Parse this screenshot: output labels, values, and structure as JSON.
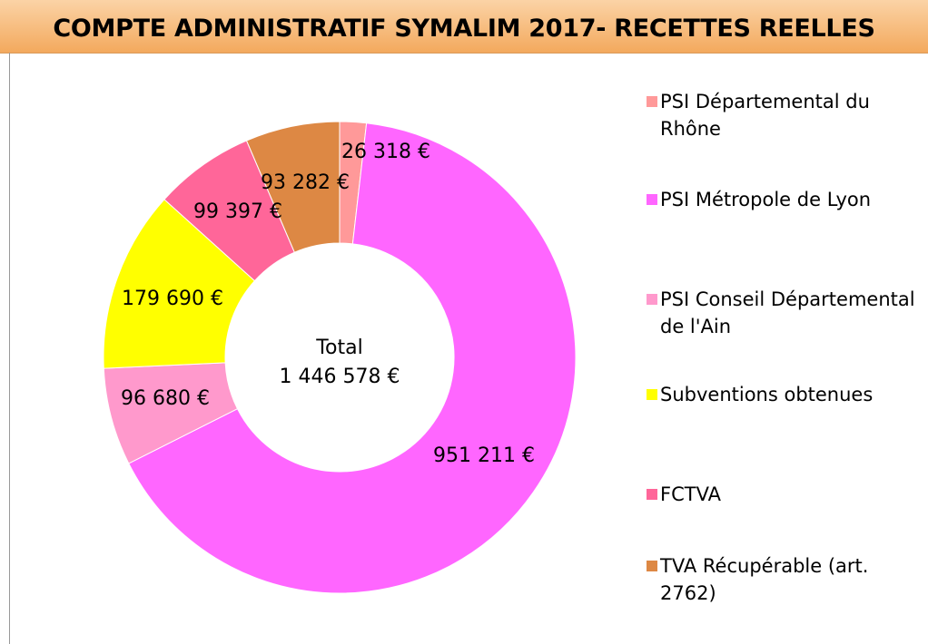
{
  "chart_data": {
    "type": "donut",
    "title": "COMPTE ADMINISTRATIF SYMALIM 2017- RECETTES REELLES",
    "categories": [
      "PSI Départemental  du Rhône",
      "PSI Métropole de Lyon",
      "PSI Conseil Départemental de l'Ain",
      "Subventions obtenues",
      "FCTVA",
      "TVA Récupérable (art. 2762)"
    ],
    "values": [
      26318,
      951211,
      96680,
      179690,
      99397,
      93282
    ],
    "value_labels": [
      "26 318 €",
      "951 211 €",
      "96 680 €",
      "179 690 €",
      "99 397 €",
      "93 282 €"
    ],
    "colors": [
      "#ff9999",
      "#ff66ff",
      "#ff99cc",
      "#ffff00",
      "#ff6699",
      "#dd8844"
    ],
    "center_text": [
      "Total",
      "1 446 578 €"
    ],
    "legend": "right"
  }
}
